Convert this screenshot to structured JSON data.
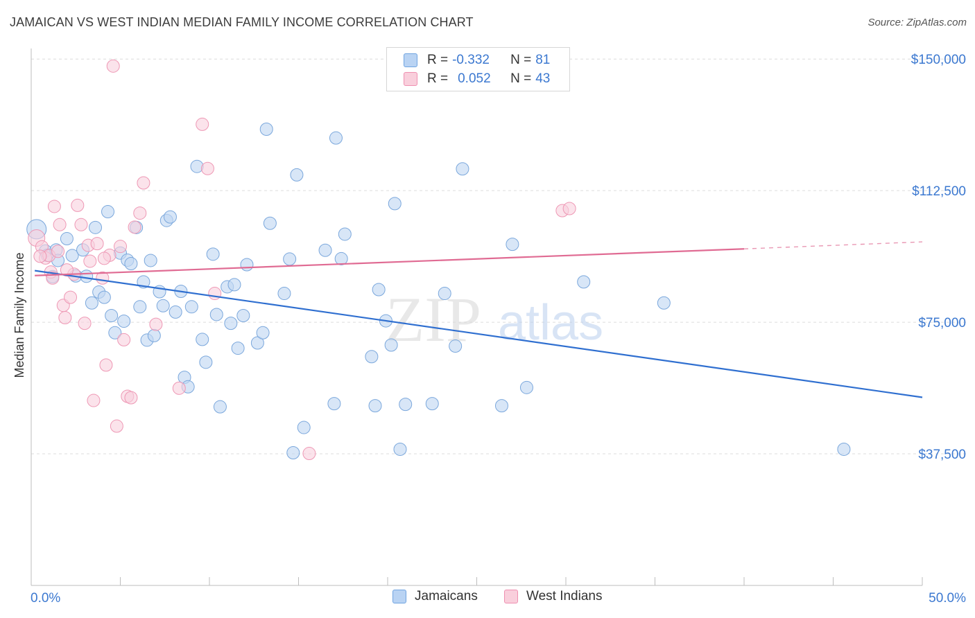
{
  "title": "JAMAICAN VS WEST INDIAN MEDIAN FAMILY INCOME CORRELATION CHART",
  "source": "Source: ZipAtlas.com",
  "watermark": {
    "zip": "ZIP",
    "atlas": "atlas"
  },
  "legend": {
    "r_label": "R =",
    "n_label": "N =",
    "rows": [
      {
        "r": "-0.332",
        "n": "81",
        "color": "#6fa3e0",
        "fill": "#b9d3f3"
      },
      {
        "r": "0.052",
        "n": "43",
        "color": "#ef8fb0",
        "fill": "#f9cfdc"
      }
    ]
  },
  "bottom_legend": [
    "Jamaicans",
    "West Indians"
  ],
  "colors": {
    "blue_point_fill": "#c3d8f2",
    "blue_point_stroke": "#7aa7dc",
    "pink_point_fill": "#f8d0dd",
    "pink_point_stroke": "#ee97b4",
    "blue_line": "#2f6fd0",
    "pink_line": "#e06b93",
    "axis_label": "#3b78d0",
    "grid": "#dcdcdc"
  },
  "chart_data": {
    "type": "scatter",
    "xlabel": "",
    "ylabel": "Median Family Income",
    "xlim": [
      0,
      50
    ],
    "ylim": [
      0,
      153000
    ],
    "x_tick_labels": [
      "0.0%",
      "50.0%"
    ],
    "y_ticks": [
      37500,
      75000,
      112500,
      150000
    ],
    "y_tick_labels": [
      "$37,500",
      "$75,000",
      "$112,500",
      "$150,000"
    ],
    "grid": true,
    "legend_position": "top-center",
    "series": [
      {
        "name": "Jamaicans",
        "trend": {
          "x": [
            0.2,
            50
          ],
          "y": [
            89700,
            53600
          ]
        },
        "points": [
          [
            0.3,
            101500
          ],
          [
            0.8,
            95300
          ],
          [
            0.9,
            94100
          ],
          [
            1.4,
            95600
          ],
          [
            1.5,
            92600
          ],
          [
            2.0,
            98800
          ],
          [
            2.3,
            94000
          ],
          [
            2.5,
            88200
          ],
          [
            2.9,
            95600
          ],
          [
            3.1,
            88100
          ],
          [
            3.4,
            80500
          ],
          [
            3.6,
            102000
          ],
          [
            3.8,
            83600
          ],
          [
            4.1,
            82100
          ],
          [
            4.3,
            106500
          ],
          [
            4.5,
            76900
          ],
          [
            4.7,
            72000
          ],
          [
            5.0,
            94700
          ],
          [
            5.2,
            75300
          ],
          [
            5.4,
            92700
          ],
          [
            5.6,
            91700
          ],
          [
            5.9,
            102000
          ],
          [
            6.1,
            79400
          ],
          [
            6.3,
            86500
          ],
          [
            6.5,
            69900
          ],
          [
            6.7,
            92600
          ],
          [
            6.9,
            71200
          ],
          [
            7.2,
            83700
          ],
          [
            7.4,
            79700
          ],
          [
            7.6,
            104000
          ],
          [
            7.8,
            105000
          ],
          [
            8.1,
            77900
          ],
          [
            8.4,
            83800
          ],
          [
            8.6,
            59300
          ],
          [
            8.8,
            56600
          ],
          [
            9.0,
            79400
          ],
          [
            9.3,
            119400
          ],
          [
            9.6,
            70100
          ],
          [
            9.8,
            63600
          ],
          [
            10.2,
            94400
          ],
          [
            10.4,
            77200
          ],
          [
            10.6,
            50900
          ],
          [
            11.0,
            85100
          ],
          [
            11.2,
            74700
          ],
          [
            11.4,
            85700
          ],
          [
            11.6,
            67600
          ],
          [
            11.9,
            76900
          ],
          [
            12.1,
            91400
          ],
          [
            12.7,
            69100
          ],
          [
            13.0,
            72000
          ],
          [
            13.2,
            130000
          ],
          [
            13.4,
            103200
          ],
          [
            14.2,
            83200
          ],
          [
            14.5,
            93000
          ],
          [
            14.7,
            37800
          ],
          [
            14.9,
            117000
          ],
          [
            15.3,
            45000
          ],
          [
            16.5,
            95500
          ],
          [
            17.1,
            127500
          ],
          [
            17.4,
            93100
          ],
          [
            17.6,
            100100
          ],
          [
            19.1,
            65200
          ],
          [
            19.3,
            51200
          ],
          [
            19.5,
            84300
          ],
          [
            19.9,
            75400
          ],
          [
            20.2,
            68500
          ],
          [
            20.4,
            108800
          ],
          [
            20.7,
            38800
          ],
          [
            21.0,
            51600
          ],
          [
            23.2,
            83200
          ],
          [
            23.8,
            68200
          ],
          [
            24.2,
            118700
          ],
          [
            26.4,
            51200
          ],
          [
            27.0,
            97200
          ],
          [
            27.8,
            56400
          ],
          [
            35.5,
            80500
          ],
          [
            45.6,
            38800
          ],
          [
            17.0,
            51800
          ],
          [
            22.5,
            51800
          ],
          [
            31.0,
            86500
          ],
          [
            1.2,
            88000
          ]
        ],
        "sizes": [
          22
        ]
      },
      {
        "name": "West Indians",
        "trend": {
          "x": [
            0.2,
            40
          ],
          "y": [
            88300,
            95900
          ],
          "dash_to": [
            50,
            97900
          ]
        },
        "points": [
          [
            0.3,
            99000
          ],
          [
            0.6,
            96500
          ],
          [
            0.8,
            93300
          ],
          [
            1.0,
            94000
          ],
          [
            1.1,
            89300
          ],
          [
            1.2,
            87600
          ],
          [
            1.3,
            108000
          ],
          [
            1.5,
            95200
          ],
          [
            1.6,
            102800
          ],
          [
            1.8,
            79800
          ],
          [
            1.9,
            76300
          ],
          [
            2.2,
            82100
          ],
          [
            2.4,
            88700
          ],
          [
            2.6,
            108300
          ],
          [
            2.8,
            102800
          ],
          [
            3.0,
            74700
          ],
          [
            3.2,
            96900
          ],
          [
            3.3,
            92400
          ],
          [
            3.5,
            52700
          ],
          [
            3.7,
            97400
          ],
          [
            4.0,
            87600
          ],
          [
            4.2,
            62800
          ],
          [
            4.4,
            94100
          ],
          [
            4.6,
            148000
          ],
          [
            4.8,
            45400
          ],
          [
            5.0,
            96600
          ],
          [
            5.2,
            70000
          ],
          [
            5.4,
            53900
          ],
          [
            5.6,
            53500
          ],
          [
            5.8,
            102100
          ],
          [
            6.1,
            106100
          ],
          [
            6.3,
            114700
          ],
          [
            7.0,
            74400
          ],
          [
            8.3,
            56200
          ],
          [
            9.6,
            131400
          ],
          [
            9.9,
            118800
          ],
          [
            10.3,
            83200
          ],
          [
            15.6,
            37600
          ],
          [
            29.8,
            106800
          ],
          [
            30.2,
            107400
          ],
          [
            0.5,
            93800
          ],
          [
            2.0,
            89900
          ],
          [
            4.1,
            93200
          ]
        ]
      }
    ]
  }
}
